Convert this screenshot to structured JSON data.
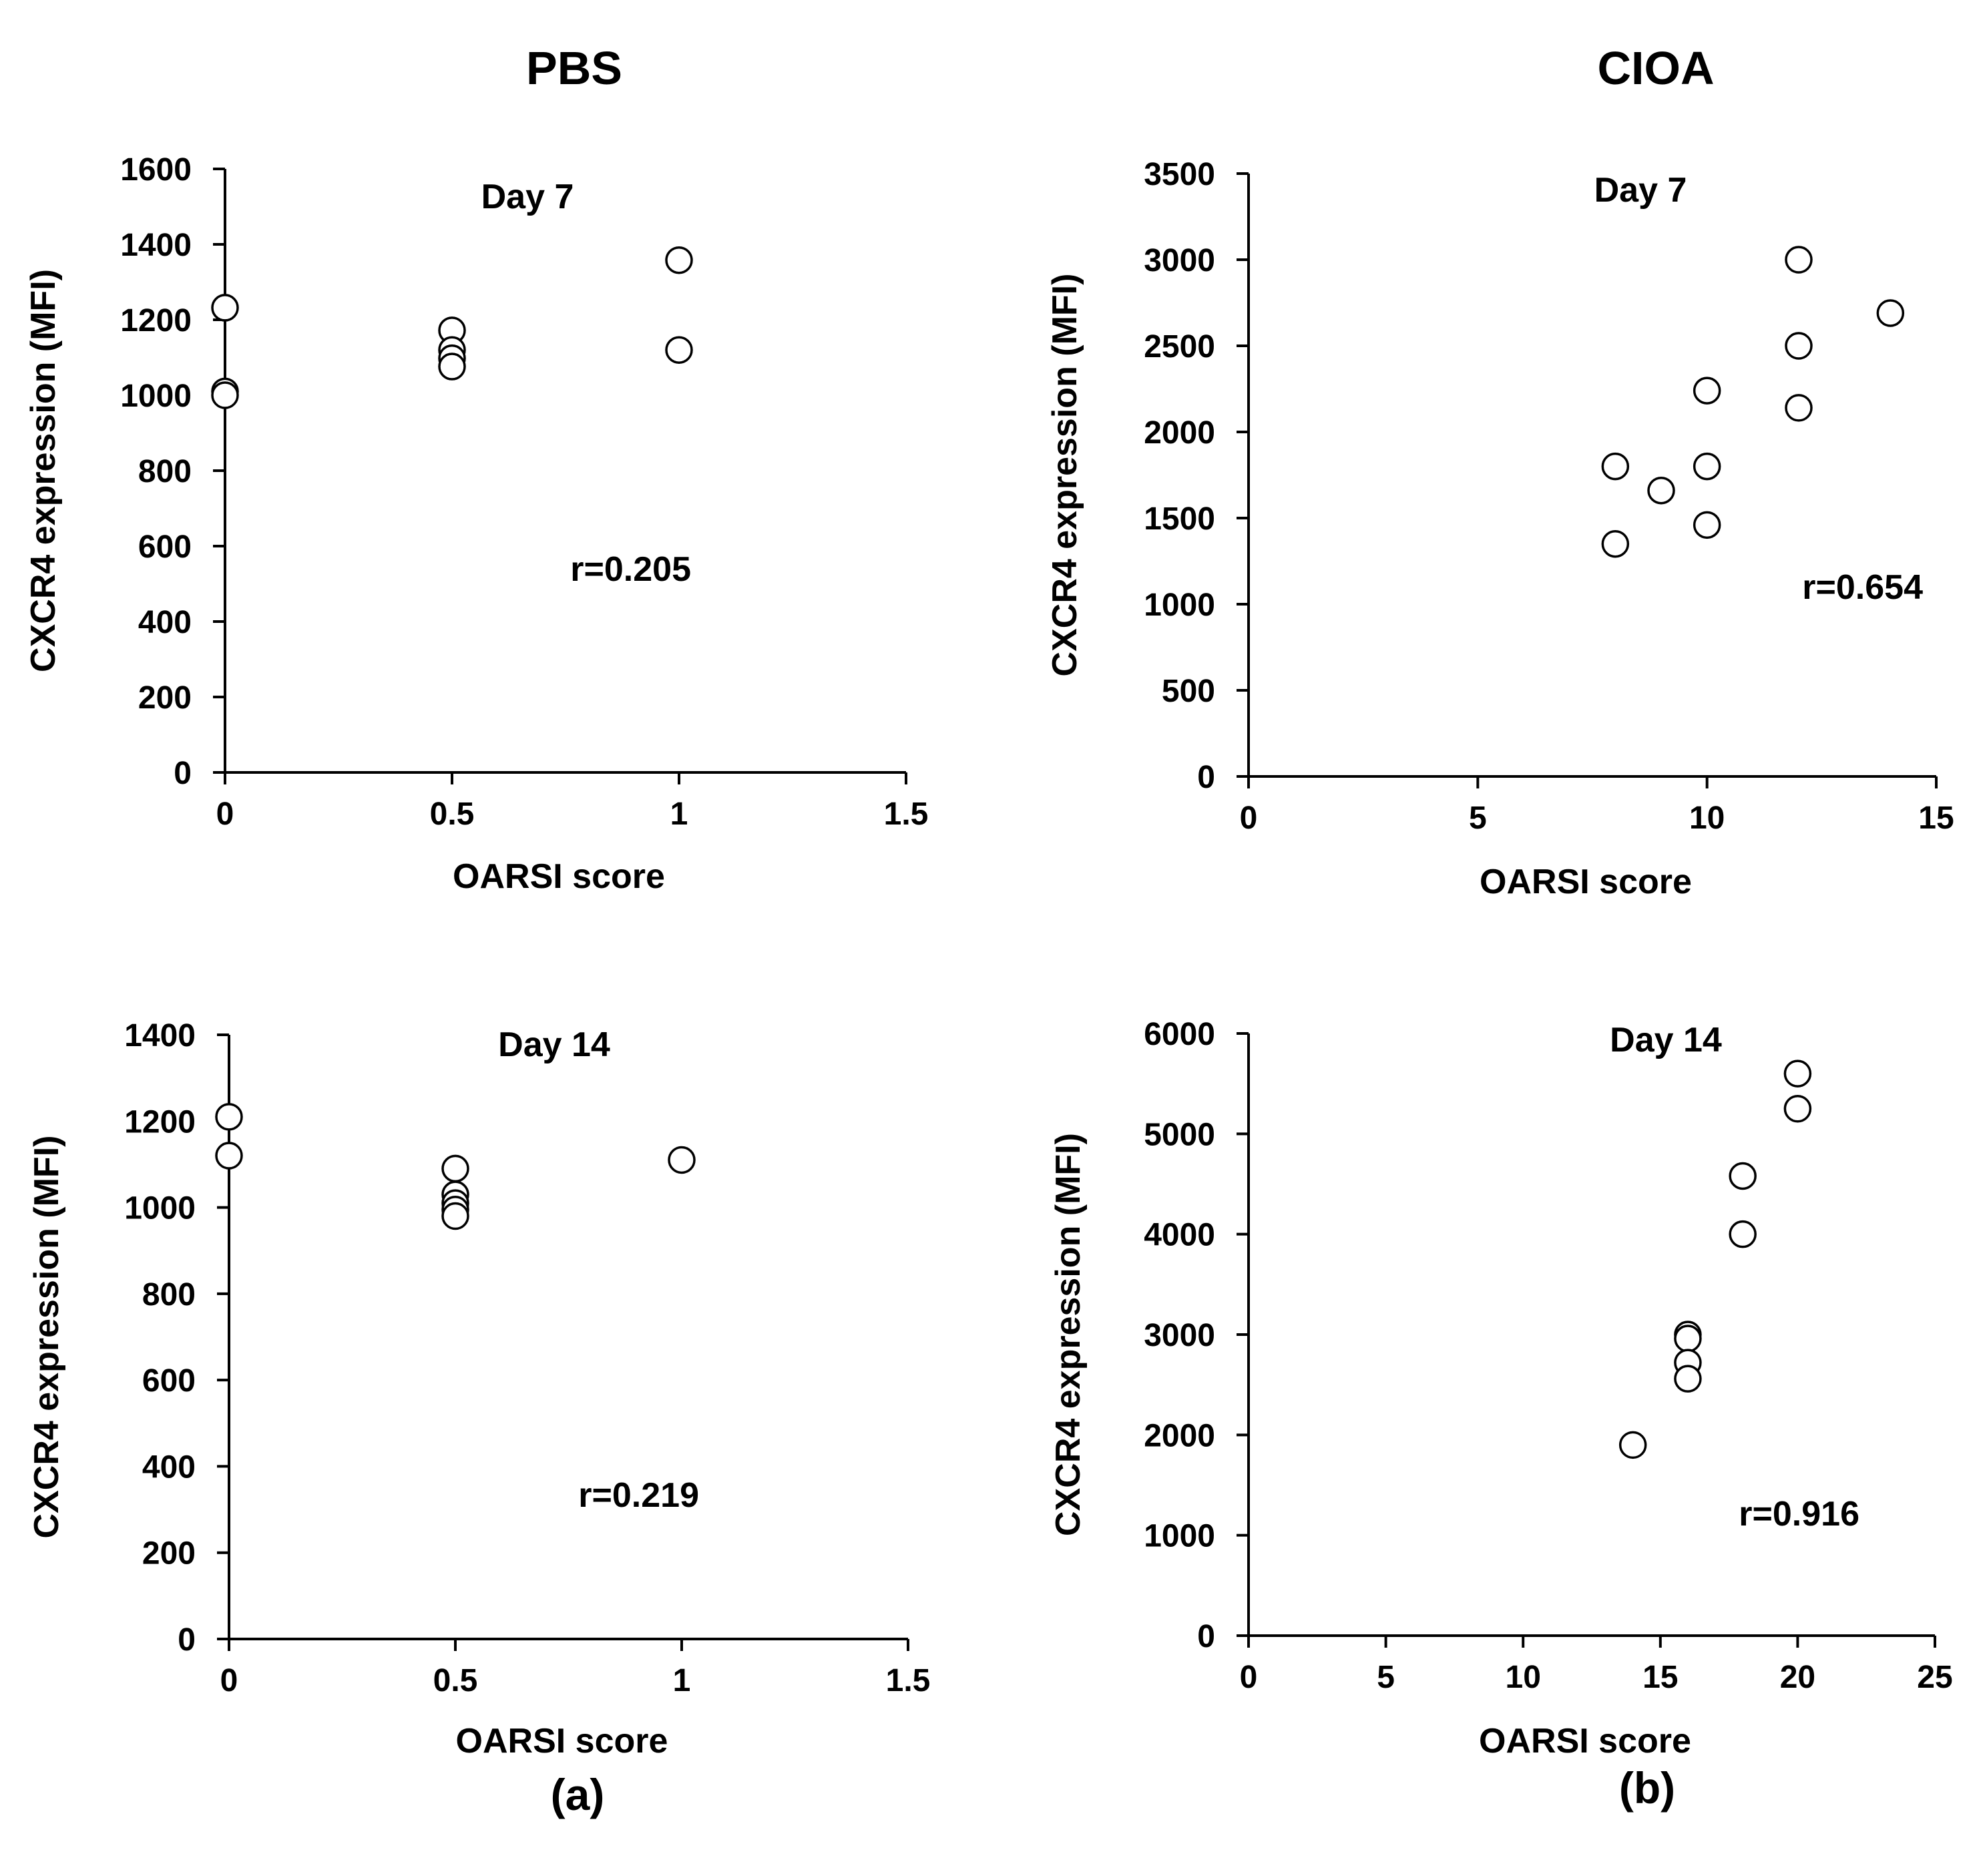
{
  "column_titles": {
    "left": "PBS",
    "right": "CIOA"
  },
  "panel_labels": {
    "left": "(a)",
    "right": "(b)"
  },
  "colors": {
    "axis": "#000000",
    "marker_stroke": "#000000",
    "marker_fill": "#ffffff"
  },
  "chart_data": [
    {
      "id": "pbs-day7",
      "type": "scatter",
      "title": "Day 7",
      "xlabel": "OARSI score",
      "ylabel": "CXCR4 expression (MFI)",
      "xlim": [
        0,
        1.5
      ],
      "ylim": [
        0,
        1600
      ],
      "xticks": [
        0,
        0.5,
        1,
        1.5
      ],
      "xtick_labels": [
        "0",
        "0.5",
        "1",
        "1.5"
      ],
      "yticks": [
        0,
        200,
        400,
        600,
        800,
        1000,
        1200,
        1400,
        1600
      ],
      "ytick_labels": [
        "0",
        "200",
        "400",
        "600",
        "800",
        "1000",
        "1200",
        "1400",
        "1600"
      ],
      "annotation": "r=0.205",
      "points": [
        [
          0,
          1232
        ],
        [
          0,
          1010
        ],
        [
          0,
          1000
        ],
        [
          0.5,
          1172
        ],
        [
          0.5,
          1120
        ],
        [
          0.5,
          1098
        ],
        [
          0.5,
          1076
        ],
        [
          1,
          1358
        ],
        [
          1,
          1120
        ]
      ]
    },
    {
      "id": "cioa-day7",
      "type": "scatter",
      "title": "Day 7",
      "xlabel": "OARSI score",
      "ylabel": "CXCR4 expression (MFI)",
      "xlim": [
        0,
        15
      ],
      "ylim": [
        0,
        3500
      ],
      "xticks": [
        0,
        5,
        10,
        15
      ],
      "xtick_labels": [
        "0",
        "5",
        "10",
        "15"
      ],
      "yticks": [
        0,
        500,
        1000,
        1500,
        2000,
        2500,
        3000,
        3500
      ],
      "ytick_labels": [
        "0",
        "500",
        "1000",
        "1500",
        "2000",
        "2500",
        "3000",
        "3500"
      ],
      "annotation": "r=0.654",
      "points": [
        [
          8,
          1800
        ],
        [
          8,
          1350
        ],
        [
          9,
          1660
        ],
        [
          10,
          2240
        ],
        [
          10,
          1800
        ],
        [
          10,
          1460
        ],
        [
          12,
          3000
        ],
        [
          12,
          2500
        ],
        [
          12,
          2140
        ],
        [
          14,
          2690
        ]
      ]
    },
    {
      "id": "pbs-day14",
      "type": "scatter",
      "title": "Day 14",
      "xlabel": "OARSI score",
      "ylabel": "CXCR4 expression (MFI)",
      "xlim": [
        0,
        1.5
      ],
      "ylim": [
        0,
        1400
      ],
      "xticks": [
        0,
        0.5,
        1,
        1.5
      ],
      "xtick_labels": [
        "0",
        "0.5",
        "1",
        "1.5"
      ],
      "yticks": [
        0,
        200,
        400,
        600,
        800,
        1000,
        1200,
        1400
      ],
      "ytick_labels": [
        "0",
        "200",
        "400",
        "600",
        "800",
        "1000",
        "1200",
        "1400"
      ],
      "annotation": "r=0.219",
      "points": [
        [
          0,
          1210
        ],
        [
          0,
          1120
        ],
        [
          0.5,
          1090
        ],
        [
          0.5,
          1030
        ],
        [
          0.5,
          1010
        ],
        [
          0.5,
          995
        ],
        [
          0.5,
          980
        ],
        [
          1,
          1110
        ]
      ]
    },
    {
      "id": "cioa-day14",
      "type": "scatter",
      "title": "Day 14",
      "xlabel": "OARSI score",
      "ylabel": "CXCR4 expression (MFI)",
      "xlim": [
        0,
        25
      ],
      "ylim": [
        0,
        6000
      ],
      "xticks": [
        0,
        5,
        10,
        15,
        20,
        25
      ],
      "xtick_labels": [
        "0",
        "5",
        "10",
        "15",
        "20",
        "25"
      ],
      "yticks": [
        0,
        1000,
        2000,
        3000,
        4000,
        5000,
        6000
      ],
      "ytick_labels": [
        "0",
        "1000",
        "2000",
        "3000",
        "4000",
        "5000",
        "6000"
      ],
      "annotation": "r=0.916",
      "points": [
        [
          14,
          1900
        ],
        [
          16,
          3000
        ],
        [
          16,
          2960
        ],
        [
          16,
          2720
        ],
        [
          16,
          2560
        ],
        [
          18,
          4580
        ],
        [
          18,
          4000
        ],
        [
          20,
          5600
        ],
        [
          20,
          5250
        ]
      ]
    }
  ]
}
